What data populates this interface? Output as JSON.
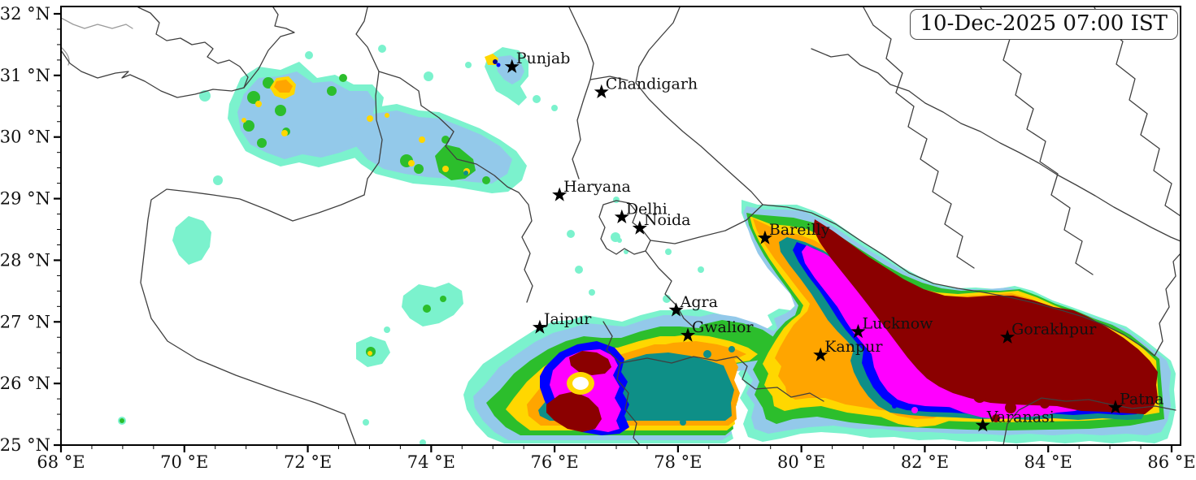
{
  "timestamp_box": {
    "timestamp": "10-Dec-2025 07:00 IST"
  },
  "axes": {
    "x": {
      "unit_suffix": " °E",
      "min": 68,
      "max": 86,
      "major_step": 2,
      "minor_step": 0.5,
      "major_ticks": [
        68,
        70,
        72,
        74,
        76,
        78,
        80,
        82,
        84,
        86
      ]
    },
    "y": {
      "unit_suffix": " °N",
      "min": 25,
      "max": 32,
      "major_step": 1,
      "minor_step": 0.25,
      "major_ticks": [
        25,
        26,
        27,
        28,
        29,
        30,
        31,
        32
      ]
    }
  },
  "cities": [
    {
      "name": "Punjab",
      "lon": 75.31,
      "lat": 31.14
    },
    {
      "name": "Chandigarh",
      "lon": 76.76,
      "lat": 30.73
    },
    {
      "name": "Haryana",
      "lon": 76.08,
      "lat": 29.06
    },
    {
      "name": "Delhi",
      "lon": 77.09,
      "lat": 28.7
    },
    {
      "name": "Noida",
      "lon": 77.38,
      "lat": 28.52
    },
    {
      "name": "Bareilly",
      "lon": 79.41,
      "lat": 28.36
    },
    {
      "name": "Agra",
      "lon": 77.97,
      "lat": 27.19
    },
    {
      "name": "Jaipur",
      "lon": 75.76,
      "lat": 26.91
    },
    {
      "name": "Gwalior",
      "lon": 78.16,
      "lat": 26.78
    },
    {
      "name": "Lucknow",
      "lon": 80.92,
      "lat": 26.84
    },
    {
      "name": "Kanpur",
      "lon": 80.31,
      "lat": 26.46
    },
    {
      "name": "Gorakhpur",
      "lon": 83.34,
      "lat": 26.75
    },
    {
      "name": "Varanasi",
      "lon": 82.94,
      "lat": 25.32
    },
    {
      "name": "Patna",
      "lon": 85.09,
      "lat": 25.61
    }
  ],
  "precipitation_palette": {
    "order": "low_to_high",
    "colors": [
      "#7BF2CD",
      "#93C9EA",
      "#2CBE2C",
      "#FFD700",
      "#FFA500",
      "#0E8F87",
      "#0000FF",
      "#00008B",
      "#FF00FF",
      "#8B0000"
    ]
  },
  "marker_color": "#000000"
}
